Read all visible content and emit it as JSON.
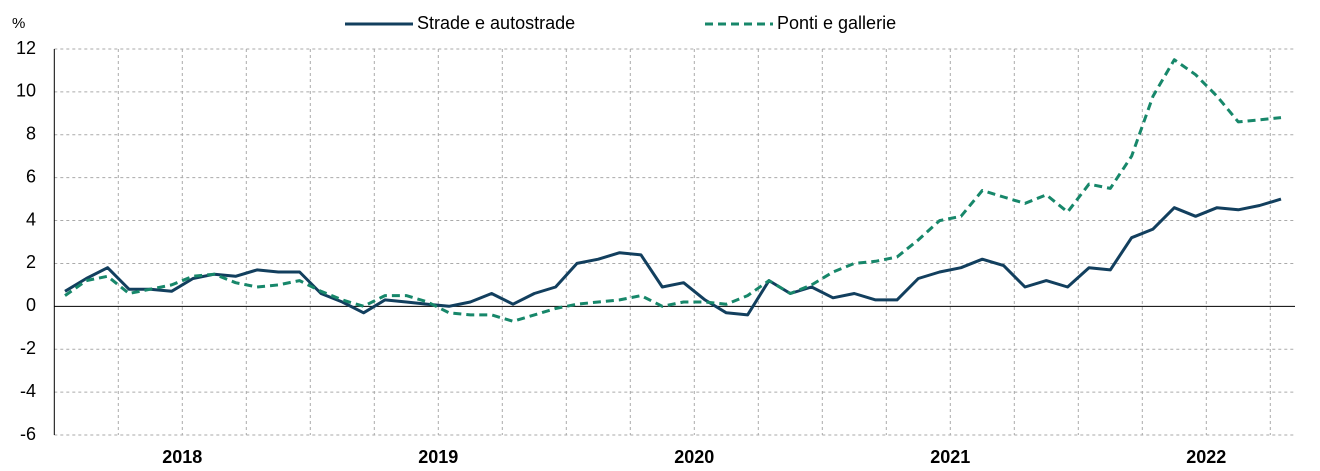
{
  "chart_data": {
    "type": "line",
    "y_label": "%",
    "categories": [
      "2018",
      null,
      null,
      null,
      null,
      null,
      null,
      null,
      null,
      null,
      null,
      null,
      "2019",
      null,
      null,
      null,
      null,
      null,
      null,
      null,
      null,
      null,
      null,
      null,
      "2020",
      null,
      null,
      null,
      null,
      null,
      null,
      null,
      null,
      null,
      null,
      null,
      "2021",
      null,
      null,
      null,
      null,
      null,
      null,
      null,
      null,
      null,
      null,
      null,
      "2022",
      null,
      null,
      null,
      null,
      null,
      null,
      null,
      null,
      null
    ],
    "series": [
      {
        "name": "Strade e autostrade",
        "color": "#123f5e",
        "dash": false,
        "values": [
          0.7,
          1.3,
          1.8,
          0.8,
          0.8,
          0.7,
          1.3,
          1.5,
          1.4,
          1.7,
          1.6,
          1.6,
          0.6,
          0.2,
          -0.3,
          0.3,
          0.2,
          0.1,
          0.0,
          0.2,
          0.6,
          0.1,
          0.6,
          0.9,
          2.0,
          2.2,
          2.5,
          2.4,
          0.9,
          1.1,
          0.3,
          -0.3,
          -0.4,
          1.2,
          0.6,
          0.9,
          0.4,
          0.6,
          0.3,
          0.3,
          1.3,
          1.6,
          1.8,
          2.2,
          1.9,
          0.9,
          1.2,
          0.9,
          1.8,
          1.7,
          3.2,
          3.6,
          4.6,
          4.2,
          4.6,
          4.5,
          4.7,
          5.0
        ]
      },
      {
        "name": "Ponti e gallerie",
        "color": "#17876a",
        "dash": true,
        "values": [
          0.5,
          1.2,
          1.4,
          0.6,
          0.8,
          1.0,
          1.4,
          1.5,
          1.1,
          0.9,
          1.0,
          1.2,
          0.7,
          0.3,
          0.0,
          0.5,
          0.5,
          0.2,
          -0.3,
          -0.4,
          -0.4,
          -0.7,
          -0.4,
          -0.1,
          0.1,
          0.2,
          0.3,
          0.5,
          0.0,
          0.2,
          0.2,
          0.1,
          0.5,
          1.2,
          0.6,
          1.0,
          1.6,
          2.0,
          2.1,
          2.3,
          3.1,
          4.0,
          4.2,
          5.4,
          5.1,
          4.8,
          5.2,
          4.4,
          5.7,
          5.5,
          7.0,
          9.8,
          11.5,
          10.8,
          9.8,
          8.6,
          8.7,
          8.8
        ]
      }
    ],
    "ylim": [
      -6,
      12
    ],
    "yticks": [
      -6,
      -4,
      -2,
      0,
      2,
      4,
      6,
      8,
      10,
      12
    ],
    "grid": true
  }
}
